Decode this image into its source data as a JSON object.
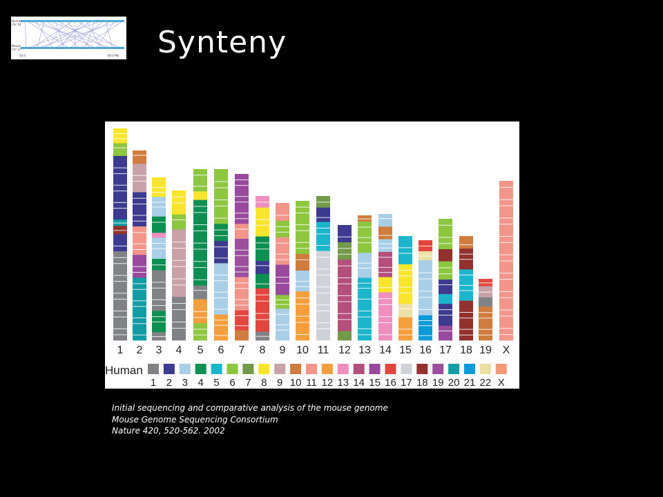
{
  "title": "Synteny",
  "thumbnail": {
    "top_label_1": "Human",
    "top_label_2": "Chr 14",
    "bottom_label_1": "Mouse",
    "bottom_label_2": "Chr 12",
    "left_scale": "50.0",
    "right_scale": "60.0 Mb"
  },
  "legend": {
    "label": "Human",
    "chromosomes": [
      {
        "name": "1",
        "color": "#808285"
      },
      {
        "name": "2",
        "color": "#3c3b8f"
      },
      {
        "name": "3",
        "color": "#a9cfe8"
      },
      {
        "name": "4",
        "color": "#0d8f52"
      },
      {
        "name": "5",
        "color": "#1cb6cc"
      },
      {
        "name": "6",
        "color": "#8dc63f"
      },
      {
        "name": "7",
        "color": "#73994a"
      },
      {
        "name": "8",
        "color": "#f9e52d"
      },
      {
        "name": "9",
        "color": "#c9a1a8"
      },
      {
        "name": "10",
        "color": "#d07c3f"
      },
      {
        "name": "11",
        "color": "#f2958a"
      },
      {
        "name": "12",
        "color": "#f49f3b"
      },
      {
        "name": "13",
        "color": "#ee8fbd"
      },
      {
        "name": "14",
        "color": "#b44f7c"
      },
      {
        "name": "15",
        "color": "#9a4a9c"
      },
      {
        "name": "16",
        "color": "#e2473f"
      },
      {
        "name": "17",
        "color": "#cfd3d8"
      },
      {
        "name": "18",
        "color": "#93312f"
      },
      {
        "name": "19",
        "color": "#9c4f9c"
      },
      {
        "name": "20",
        "color": "#139ca3"
      },
      {
        "name": "21",
        "color": "#0e9ad6"
      },
      {
        "name": "22",
        "color": "#ede0a6"
      },
      {
        "name": "X",
        "color": "#f29a77"
      }
    ]
  },
  "mouse_chromosomes": [
    {
      "label": "1",
      "blocks": [
        [
          "8",
          0.07
        ],
        [
          "6",
          0.06
        ],
        [
          "2",
          0.3
        ],
        [
          "20",
          0.03
        ],
        [
          "18",
          0.04
        ],
        [
          "2",
          0.08
        ],
        [
          "1",
          0.42
        ]
      ]
    },
    {
      "label": "2",
      "blocks": [
        [
          "10",
          0.07
        ],
        [
          "9",
          0.15
        ],
        [
          "2",
          0.18
        ],
        [
          "11",
          0.15
        ],
        [
          "15",
          0.12
        ],
        [
          "20",
          0.33
        ]
      ]
    },
    {
      "label": "3",
      "blocks": [
        [
          "8",
          0.12
        ],
        [
          "3",
          0.12
        ],
        [
          "4",
          0.1
        ],
        [
          "13",
          0.03
        ],
        [
          "3",
          0.13
        ],
        [
          "4",
          0.07
        ],
        [
          "1",
          0.25
        ],
        [
          "4",
          0.13
        ],
        [
          "1",
          0.05
        ]
      ]
    },
    {
      "label": "4",
      "blocks": [
        [
          "8",
          0.16
        ],
        [
          "6",
          0.1
        ],
        [
          "9",
          0.45
        ],
        [
          "1",
          0.29
        ]
      ]
    },
    {
      "label": "5",
      "blocks": [
        [
          "6",
          0.13
        ],
        [
          "8",
          0.05
        ],
        [
          "4",
          0.5
        ],
        [
          "1",
          0.08
        ],
        [
          "12",
          0.14
        ],
        [
          "6",
          0.1
        ]
      ]
    },
    {
      "label": "6",
      "blocks": [
        [
          "6",
          0.32
        ],
        [
          "4",
          0.1
        ],
        [
          "2",
          0.13
        ],
        [
          "3",
          0.3
        ],
        [
          "12",
          0.15
        ]
      ]
    },
    {
      "label": "7",
      "blocks": [
        [
          "15",
          0.3
        ],
        [
          "11",
          0.09
        ],
        [
          "19",
          0.23
        ],
        [
          "11",
          0.2
        ],
        [
          "16",
          0.12
        ],
        [
          "10",
          0.06
        ]
      ]
    },
    {
      "label": "8",
      "blocks": [
        [
          "13",
          0.08
        ],
        [
          "8",
          0.2
        ],
        [
          "4",
          0.17
        ],
        [
          "2",
          0.09
        ],
        [
          "4",
          0.1
        ],
        [
          "16",
          0.3
        ],
        [
          "1",
          0.06
        ]
      ]
    },
    {
      "label": "9",
      "blocks": [
        [
          "11",
          0.13
        ],
        [
          "6",
          0.12
        ],
        [
          "11",
          0.2
        ],
        [
          "15",
          0.22
        ],
        [
          "6",
          0.1
        ],
        [
          "3",
          0.23
        ]
      ]
    },
    {
      "label": "10",
      "blocks": [
        [
          "6",
          0.38
        ],
        [
          "10",
          0.12
        ],
        [
          "3",
          0.15
        ],
        [
          "12",
          0.35
        ]
      ]
    },
    {
      "label": "11",
      "blocks": [
        [
          "7",
          0.08
        ],
        [
          "2",
          0.1
        ],
        [
          "5",
          0.2
        ],
        [
          "17",
          0.62
        ]
      ]
    },
    {
      "label": "12",
      "blocks": [
        [
          "2",
          0.15
        ],
        [
          "7",
          0.15
        ],
        [
          "14",
          0.62
        ],
        [
          "7",
          0.08
        ]
      ]
    },
    {
      "label": "13",
      "blocks": [
        [
          "10",
          0.05
        ],
        [
          "6",
          0.25
        ],
        [
          "3",
          0.2
        ],
        [
          "5",
          0.12
        ],
        [
          "5",
          0.38
        ]
      ]
    },
    {
      "label": "14",
      "blocks": [
        [
          "3",
          0.1
        ],
        [
          "10",
          0.1
        ],
        [
          "3",
          0.1
        ],
        [
          "14",
          0.2
        ],
        [
          "8",
          0.12
        ],
        [
          "13",
          0.38
        ]
      ]
    },
    {
      "label": "15",
      "blocks": [
        [
          "5",
          0.27
        ],
        [
          "8",
          0.38
        ],
        [
          "22",
          0.13
        ],
        [
          "12",
          0.22
        ]
      ]
    },
    {
      "label": "16",
      "blocks": [
        [
          "16",
          0.11
        ],
        [
          "22",
          0.09
        ],
        [
          "3",
          0.55
        ],
        [
          "21",
          0.25
        ]
      ]
    },
    {
      "label": "17",
      "blocks": [
        [
          "6",
          0.25
        ],
        [
          "18",
          0.1
        ],
        [
          "6",
          0.15
        ],
        [
          "2",
          0.12
        ],
        [
          "5",
          0.08
        ],
        [
          "2",
          0.18
        ],
        [
          "15",
          0.12
        ]
      ]
    },
    {
      "label": "18",
      "blocks": [
        [
          "10",
          0.12
        ],
        [
          "18",
          0.2
        ],
        [
          "5",
          0.3
        ],
        [
          "18",
          0.38
        ]
      ]
    },
    {
      "label": "19",
      "blocks": [
        [
          "16",
          0.12
        ],
        [
          "9",
          0.18
        ],
        [
          "1",
          0.15
        ],
        [
          "10",
          0.55
        ]
      ]
    },
    {
      "label": "X",
      "blocks": [
        [
          "11",
          1.0
        ]
      ]
    }
  ],
  "citation": {
    "line1": "Initial sequencing and comparative analysis of the mouse genome",
    "line2": "Mouse Genome Sequencing Consortium",
    "line3": "Nature 420, 520-562. 2002"
  }
}
